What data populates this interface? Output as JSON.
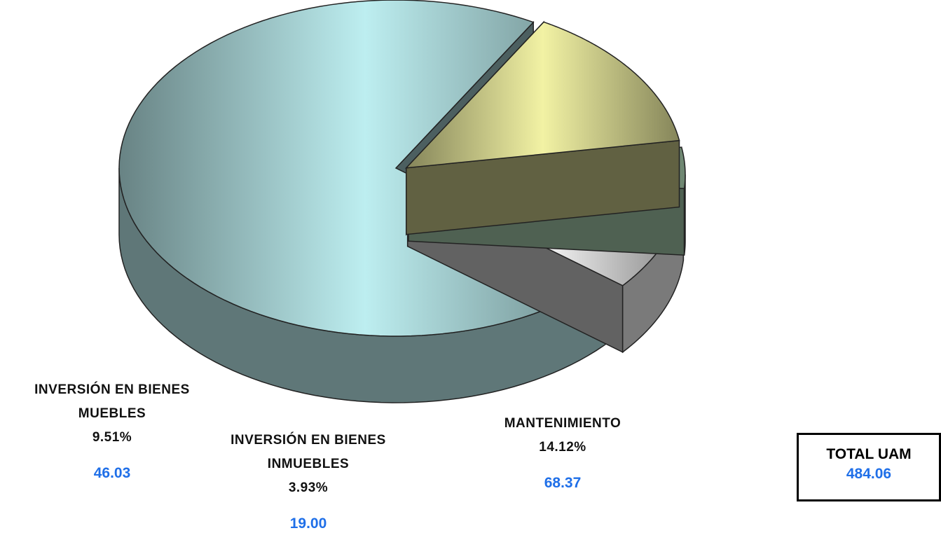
{
  "chart_data": {
    "type": "pie",
    "categories": [
      null,
      "MANTENIMIENTO",
      "INVERSIÓN EN BIENES INMUEBLES",
      "INVERSIÓN EN BIENES MUEBLES"
    ],
    "values": [
      72.44,
      14.12,
      3.93,
      9.51
    ],
    "value_labels": [
      null,
      "14.12%",
      "3.93%",
      "9.51%"
    ],
    "amounts": [
      null,
      68.37,
      19,
      46.03
    ],
    "amount_labels": [
      null,
      "68.37",
      "19.00",
      "46.03"
    ],
    "colors": [
      "#bdeef0",
      "#f2f2a4",
      "#c6f2cc",
      "#f4f4f4"
    ],
    "total_label": "TOTAL UAM",
    "total": 484.06
  }
}
